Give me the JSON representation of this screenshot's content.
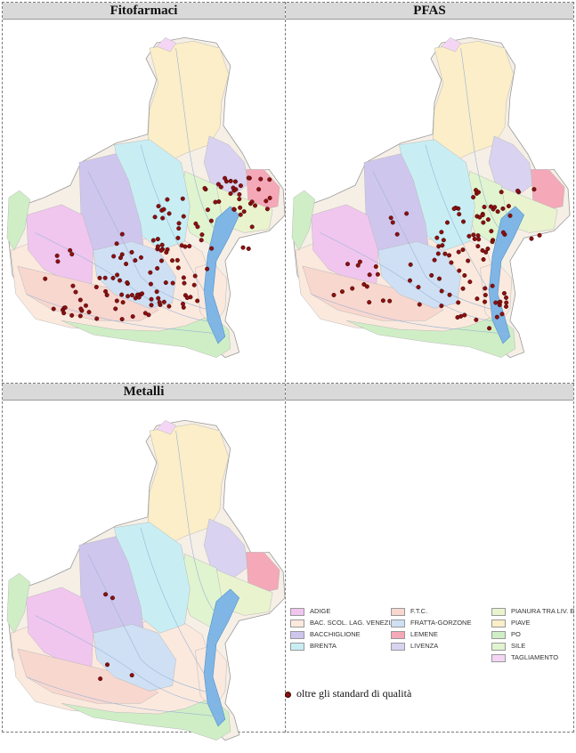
{
  "panels": {
    "fitofarmaci": {
      "title": "Fitofarmaci"
    },
    "pfas": {
      "title": "PFAS"
    },
    "metalli": {
      "title": "Metalli"
    },
    "empty": {
      "title": ""
    }
  },
  "legend": {
    "items": [
      {
        "label": "ADIGE",
        "color": "#f0c6ee"
      },
      {
        "label": "BAC. SCOL. LAG. VENEZIA",
        "color": "#fbe9de"
      },
      {
        "label": "BACCHIGLIONE",
        "color": "#cfc6ee"
      },
      {
        "label": "BRENTA",
        "color": "#c8eef4"
      },
      {
        "label": "F.T.C.",
        "color": "#f8d7cf"
      },
      {
        "label": "FRATTA-GORZONE",
        "color": "#cfe0f4"
      },
      {
        "label": "LEMENE",
        "color": "#f4a8b8"
      },
      {
        "label": "LIVENZA",
        "color": "#d9d2f0"
      },
      {
        "label": "PIANURA TRA LIV. E PI",
        "color": "#e9f4cf"
      },
      {
        "label": "PIAVE",
        "color": "#fbeec8"
      },
      {
        "label": "PO",
        "color": "#cfeec6"
      },
      {
        "label": "SILE",
        "color": "#e0f4cf"
      },
      {
        "label": "TAGLIAMENTO",
        "color": "#f4d6f4"
      }
    ],
    "marker_label": "oltre gli standard di qualità",
    "marker_color": "#8b1010"
  }
}
